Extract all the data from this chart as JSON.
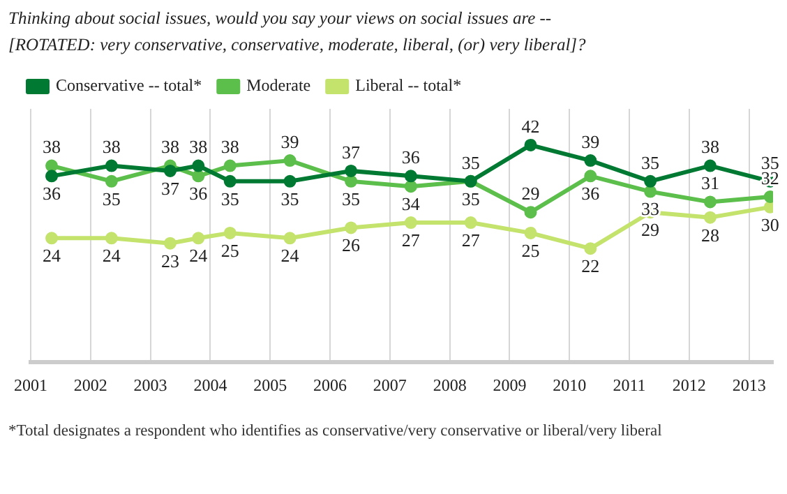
{
  "chart_data": {
    "type": "line",
    "title": "Thinking about social issues, would you say your views on social issues are --\n[ROTATED: very conservative, conservative, moderate, liberal, (or) very liberal]?",
    "xlim": [
      2001,
      2013.4
    ],
    "xticks": [
      2001,
      2002,
      2003,
      2004,
      2005,
      2006,
      2007,
      2008,
      2009,
      2010,
      2011,
      2012,
      2013
    ],
    "ylim": [
      0,
      49
    ],
    "tick_labels": "x",
    "grid": "x",
    "legend": "top left",
    "marker": "circle",
    "data_labels": true,
    "x": [
      2001.35,
      2002.35,
      2003.33,
      2003.8,
      2004.33,
      2005.33,
      2006.35,
      2007.35,
      2008.35,
      2009.35,
      2010.35,
      2011.35,
      2012.35,
      2013.35
    ],
    "series": [
      {
        "name": "Conservative -- total*",
        "color": "#007a33",
        "values": [
          36,
          38,
          37,
          38,
          35,
          35,
          37,
          36,
          35,
          42,
          39,
          35,
          38,
          35
        ]
      },
      {
        "name": "Moderate",
        "color": "#5dbf4b",
        "values": [
          38,
          35,
          38,
          36,
          38,
          39,
          35,
          34,
          35,
          29,
          36,
          33,
          31,
          32
        ]
      },
      {
        "name": "Liberal -- total*",
        "color": "#c3e36c",
        "values": [
          24,
          24,
          23,
          24,
          25,
          24,
          26,
          27,
          27,
          25,
          22,
          29,
          28,
          30
        ]
      }
    ],
    "annotations": [
      "*Total designates a respondent who identifies as conservative/very conservative or liberal/very liberal"
    ]
  }
}
